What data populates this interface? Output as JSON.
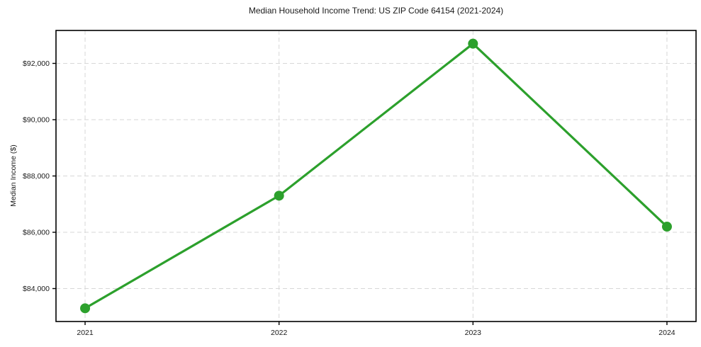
{
  "chart_data": {
    "type": "line",
    "title": "Median Household Income Trend: US ZIP Code 64154 (2021-2024)",
    "xlabel": "",
    "ylabel": "Median Income ($)",
    "x": [
      2021,
      2022,
      2023,
      2024
    ],
    "x_tick_labels": [
      "2021",
      "2022",
      "2023",
      "2024"
    ],
    "series": [
      {
        "name": "Median Household Income",
        "values": [
          83300,
          87300,
          92700,
          86200
        ],
        "color": "#2ca02c",
        "marker": "circle",
        "marker_color": "#2ca02c"
      }
    ],
    "y_ticks": [
      84000,
      86000,
      88000,
      90000,
      92000
    ],
    "y_tick_labels": [
      "$84,000",
      "$86,000",
      "$88,000",
      "$90,000",
      "$92,000"
    ],
    "xlim": [
      2020.85,
      2024.15
    ],
    "ylim": [
      82830,
      93170
    ],
    "grid": "both",
    "grid_style": "dashed",
    "grid_color": "#d7d7d7",
    "spine_color": "#000000",
    "legend_position": "none",
    "background_color": "#ffffff"
  }
}
